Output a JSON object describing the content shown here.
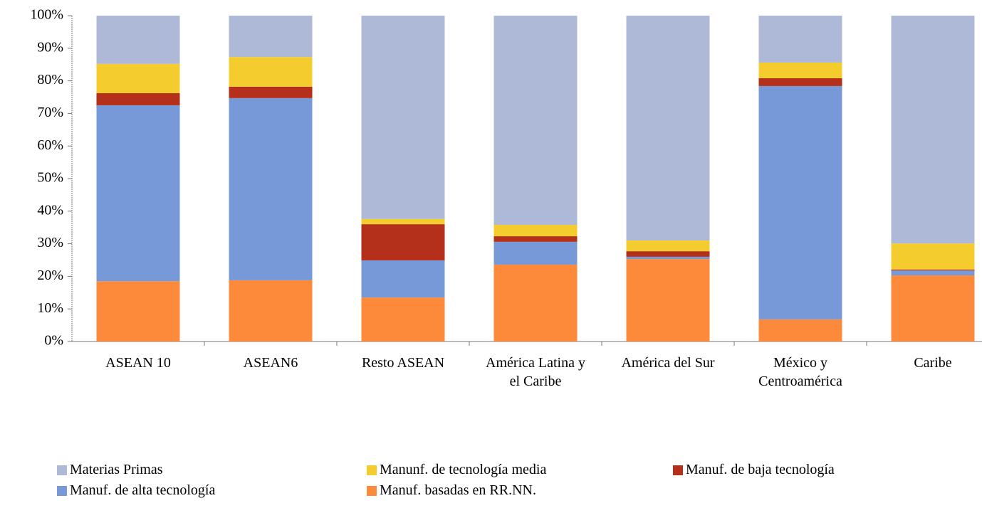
{
  "chart_data": {
    "type": "stacked_bar",
    "categories": [
      "ASEAN 10",
      "ASEAN6",
      "Resto ASEAN",
      "América Latina y el Caribe",
      "América del Sur",
      "México y Centroamérica",
      "Caribe"
    ],
    "series": [
      {
        "name": "Materias Primas",
        "color": "#adb9d7",
        "values": [
          14.8,
          12.7,
          62.4,
          64.2,
          69,
          14.4,
          69.9
        ]
      },
      {
        "name": "Manunf. de tecnología media",
        "color": "#f5cc2d",
        "values": [
          9,
          9.1,
          1.6,
          3.5,
          3.3,
          4.8,
          8
        ]
      },
      {
        "name": "Manuf. de baja tecnología",
        "color": "#b5301a",
        "values": [
          3.7,
          3.5,
          11.1,
          1.7,
          1.7,
          2.4,
          0.3
        ]
      },
      {
        "name": "Manuf. de alta tecnología",
        "color": "#7799d8",
        "values": [
          54,
          55.9,
          11.4,
          7,
          0.7,
          71.6,
          1.5
        ]
      },
      {
        "name": "Manuf. basadas en RR.NN.",
        "color": "#fc8a3a",
        "values": [
          18.5,
          18.8,
          13.5,
          23.6,
          25.3,
          6.8,
          20.3
        ]
      }
    ],
    "ylim": [
      0,
      100
    ],
    "yticks": [
      {
        "value": 0,
        "label": "0%"
      },
      {
        "value": 10,
        "label": "10%"
      },
      {
        "value": 20,
        "label": "20%"
      },
      {
        "value": 30,
        "label": "30%"
      },
      {
        "value": 40,
        "label": "40%"
      },
      {
        "value": 50,
        "label": "50%"
      },
      {
        "value": 60,
        "label": "60%"
      },
      {
        "value": 70,
        "label": "70%"
      },
      {
        "value": 80,
        "label": "80%"
      },
      {
        "value": 90,
        "label": "90%"
      },
      {
        "value": 100,
        "label": "100%"
      }
    ],
    "grid": false
  }
}
